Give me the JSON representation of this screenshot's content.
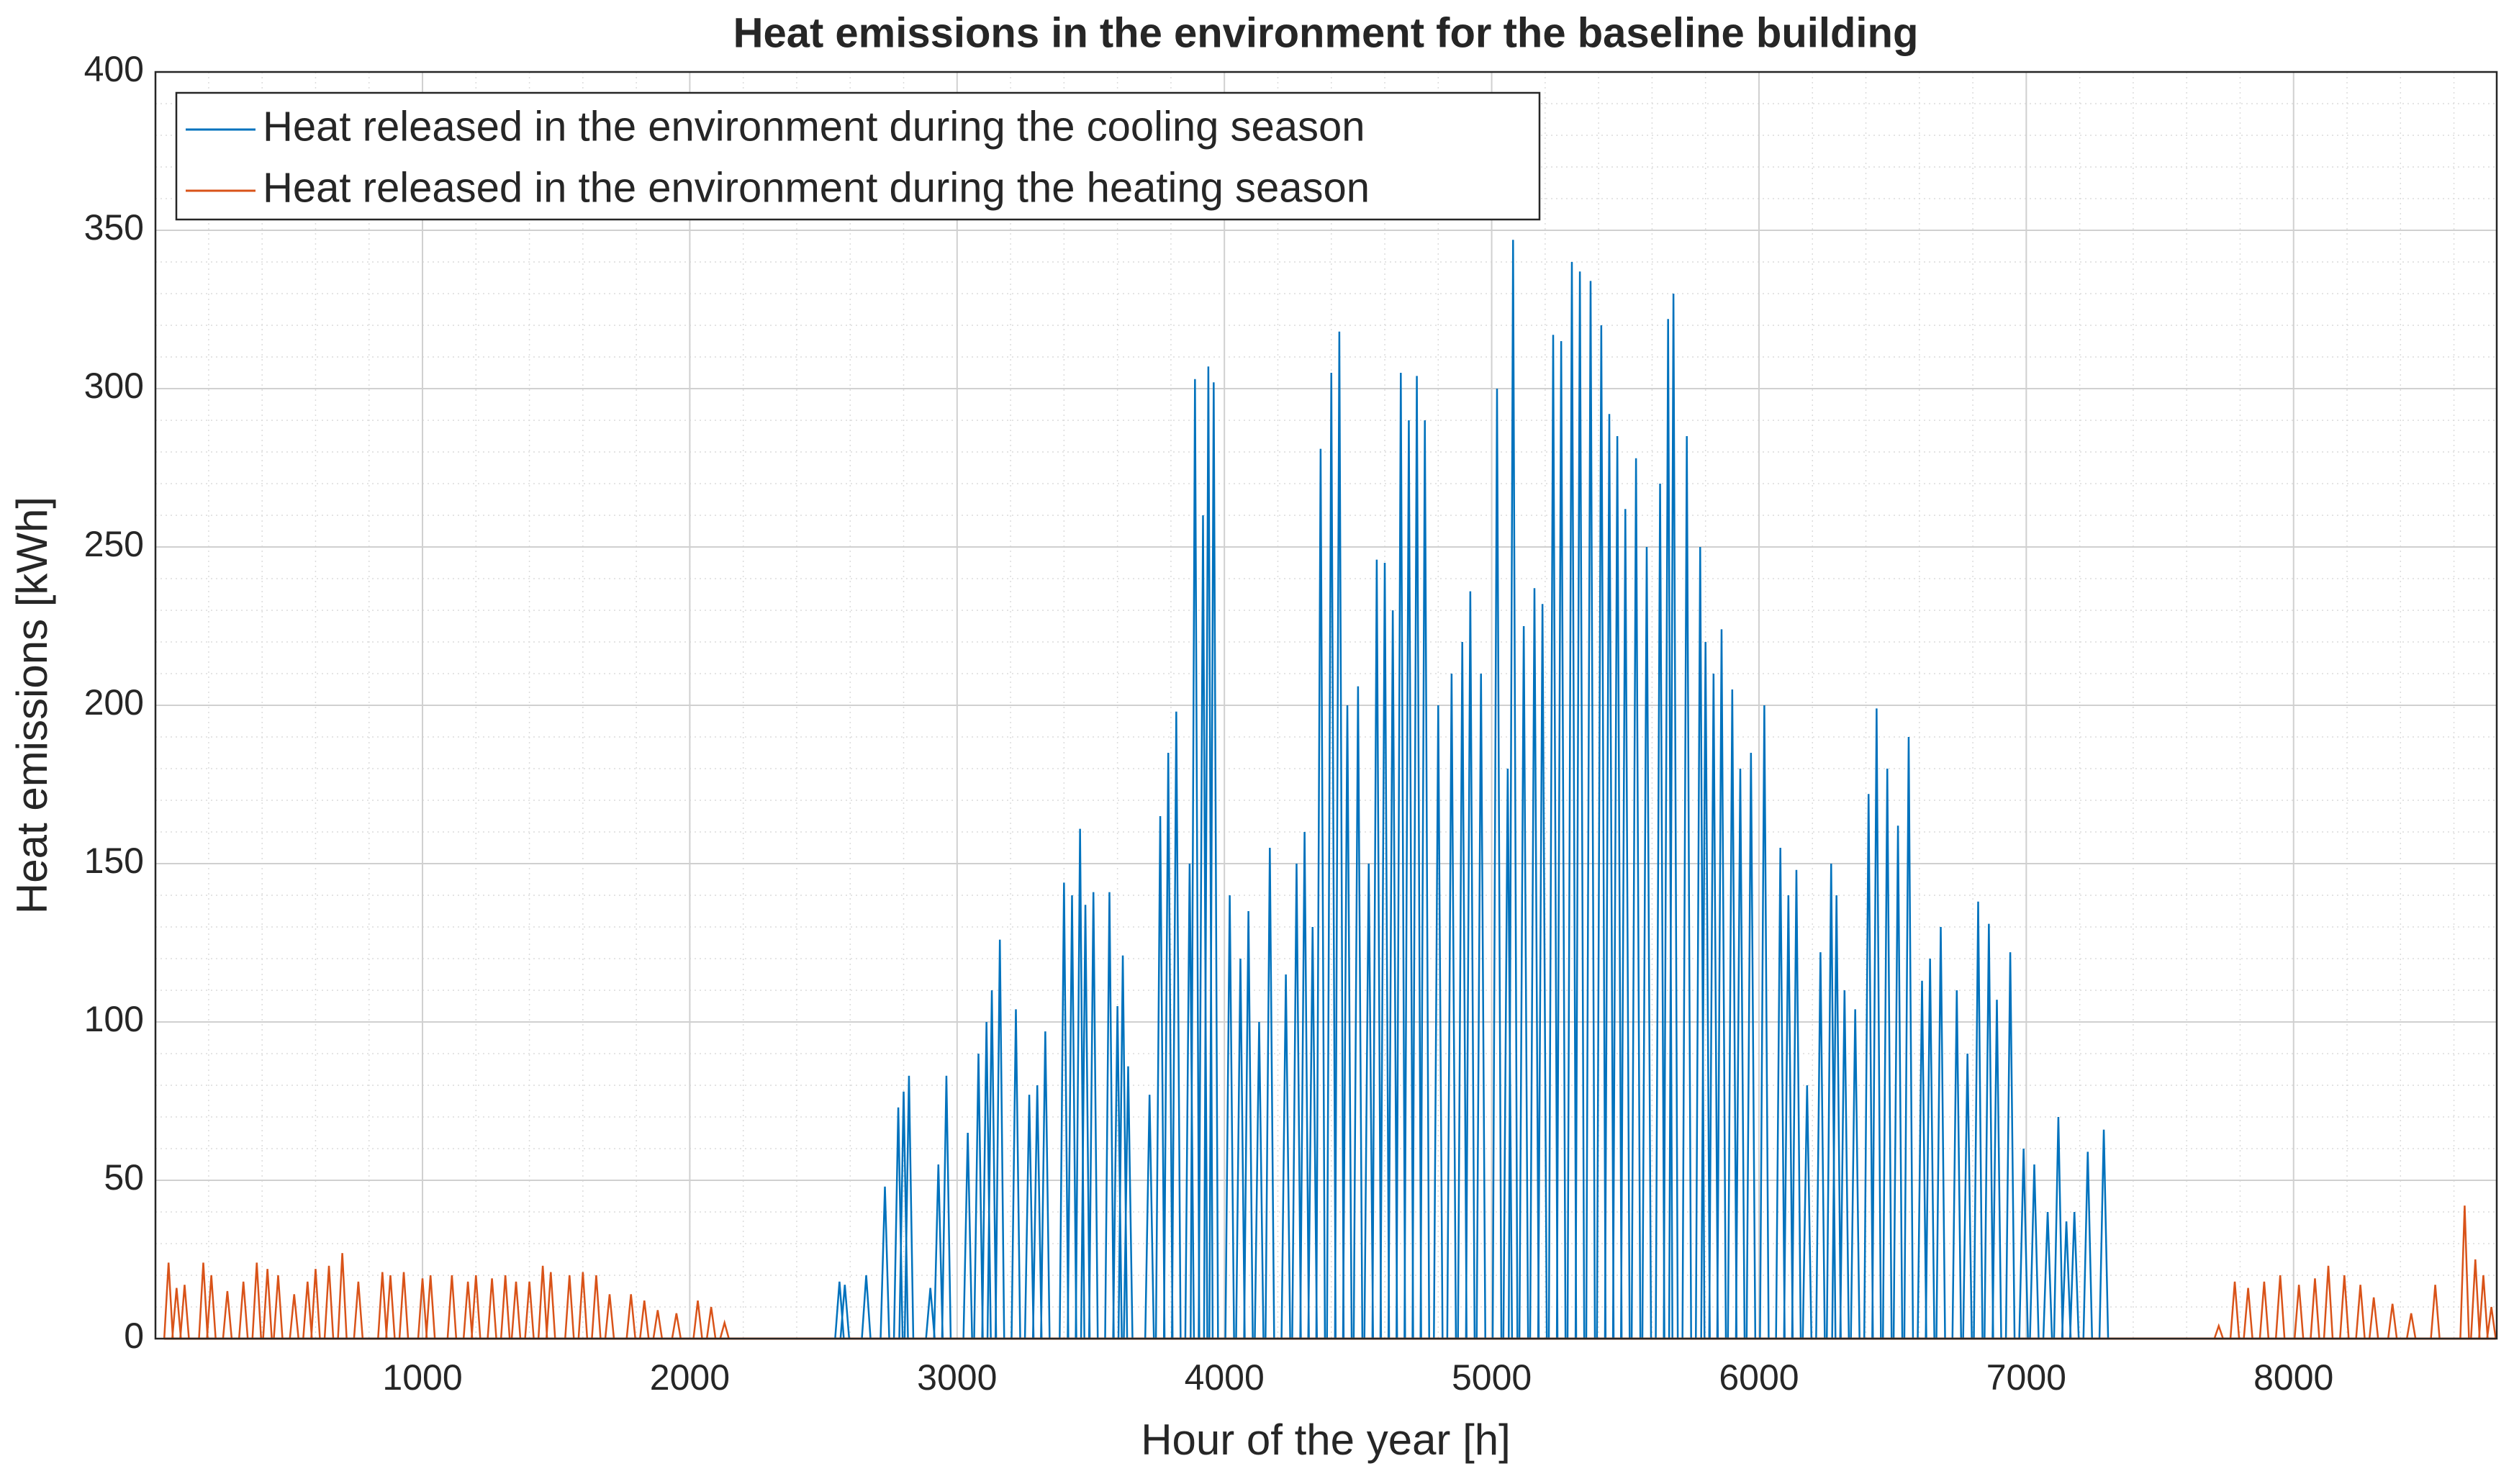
{
  "chart_data": {
    "type": "line",
    "title": "Heat emissions in the environment for the baseline building",
    "x_label": "Hour of the year [h]",
    "y_label": "Heat emissions [kWh]",
    "xlim": [
      1,
      8760
    ],
    "xticks": [
      1000,
      2000,
      3000,
      4000,
      5000,
      6000,
      7000,
      8000
    ],
    "ylim": [
      0,
      400
    ],
    "yticks": [
      0,
      50,
      100,
      150,
      200,
      250,
      300,
      350,
      400
    ],
    "grid": true,
    "minor_grid": true,
    "legend_position": "upper-left",
    "series": [
      {
        "name": "Heat released in the environment during the cooling season",
        "color": "#0072bd",
        "x": [
          2560,
          2580,
          2660,
          2730,
          2780,
          2800,
          2820,
          2900,
          2930,
          2960,
          3040,
          3080,
          3110,
          3130,
          3160,
          3220,
          3270,
          3300,
          3330,
          3400,
          3430,
          3460,
          3480,
          3510,
          3570,
          3600,
          3620,
          3640,
          3720,
          3760,
          3790,
          3820,
          3870,
          3890,
          3920,
          3940,
          3960,
          4020,
          4060,
          4090,
          4130,
          4170,
          4230,
          4270,
          4300,
          4330,
          4360,
          4400,
          4430,
          4460,
          4500,
          4540,
          4570,
          4600,
          4630,
          4660,
          4690,
          4720,
          4750,
          4800,
          4850,
          4890,
          4920,
          4960,
          5020,
          5060,
          5080,
          5120,
          5160,
          5190,
          5230,
          5260,
          5300,
          5330,
          5370,
          5410,
          5440,
          5470,
          5500,
          5540,
          5580,
          5630,
          5660,
          5680,
          5730,
          5780,
          5800,
          5830,
          5860,
          5900,
          5930,
          5970,
          6020,
          6080,
          6110,
          6140,
          6180,
          6230,
          6270,
          6290,
          6320,
          6360,
          6410,
          6440,
          6480,
          6520,
          6560,
          6610,
          6640,
          6680,
          6740,
          6780,
          6820,
          6860,
          6890,
          6940,
          6990,
          7030,
          7080,
          7120,
          7150,
          7180,
          7230,
          7290
        ],
        "values": [
          18,
          17,
          20,
          48,
          73,
          78,
          83,
          16,
          55,
          83,
          65,
          90,
          100,
          110,
          126,
          104,
          77,
          80,
          97,
          144,
          140,
          161,
          137,
          141,
          141,
          105,
          121,
          86,
          77,
          165,
          185,
          198,
          150,
          303,
          260,
          307,
          302,
          140,
          120,
          135,
          100,
          155,
          115,
          150,
          160,
          130,
          281,
          305,
          318,
          200,
          206,
          150,
          246,
          245,
          230,
          305,
          290,
          304,
          290,
          200,
          210,
          220,
          236,
          210,
          300,
          180,
          347,
          225,
          237,
          232,
          317,
          315,
          340,
          337,
          334,
          320,
          292,
          285,
          262,
          278,
          250,
          270,
          322,
          330,
          285,
          250,
          220,
          210,
          224,
          205,
          180,
          185,
          200,
          155,
          140,
          148,
          80,
          122,
          150,
          140,
          110,
          104,
          172,
          199,
          180,
          162,
          190,
          113,
          120,
          130,
          110,
          90,
          138,
          131,
          107,
          122,
          60,
          55,
          40,
          70,
          37,
          40,
          59,
          66
        ]
      },
      {
        "name": "Heat released in the environment during the heating season",
        "color": "#d95319",
        "x": [
          50,
          80,
          110,
          180,
          210,
          270,
          330,
          380,
          420,
          460,
          520,
          570,
          600,
          650,
          700,
          760,
          850,
          880,
          930,
          1000,
          1030,
          1110,
          1170,
          1200,
          1260,
          1310,
          1350,
          1400,
          1450,
          1480,
          1550,
          1600,
          1650,
          1700,
          1780,
          1830,
          1880,
          1950,
          2030,
          2080,
          2130,
          7720,
          7780,
          7830,
          7890,
          7950,
          8020,
          8080,
          8130,
          8190,
          8250,
          8300,
          8370,
          8440,
          8530,
          8640,
          8680,
          8710,
          8740
        ],
        "values": [
          24,
          16,
          17,
          24,
          20,
          15,
          18,
          24,
          22,
          20,
          14,
          18,
          22,
          23,
          27,
          18,
          21,
          20,
          21,
          19,
          20,
          20,
          18,
          20,
          19,
          20,
          18,
          18,
          23,
          21,
          20,
          21,
          20,
          14,
          14,
          12,
          9,
          8,
          12,
          10,
          5,
          4,
          18,
          16,
          18,
          20,
          17,
          19,
          23,
          20,
          17,
          13,
          11,
          8,
          17,
          42,
          25,
          20,
          10
        ]
      }
    ]
  }
}
